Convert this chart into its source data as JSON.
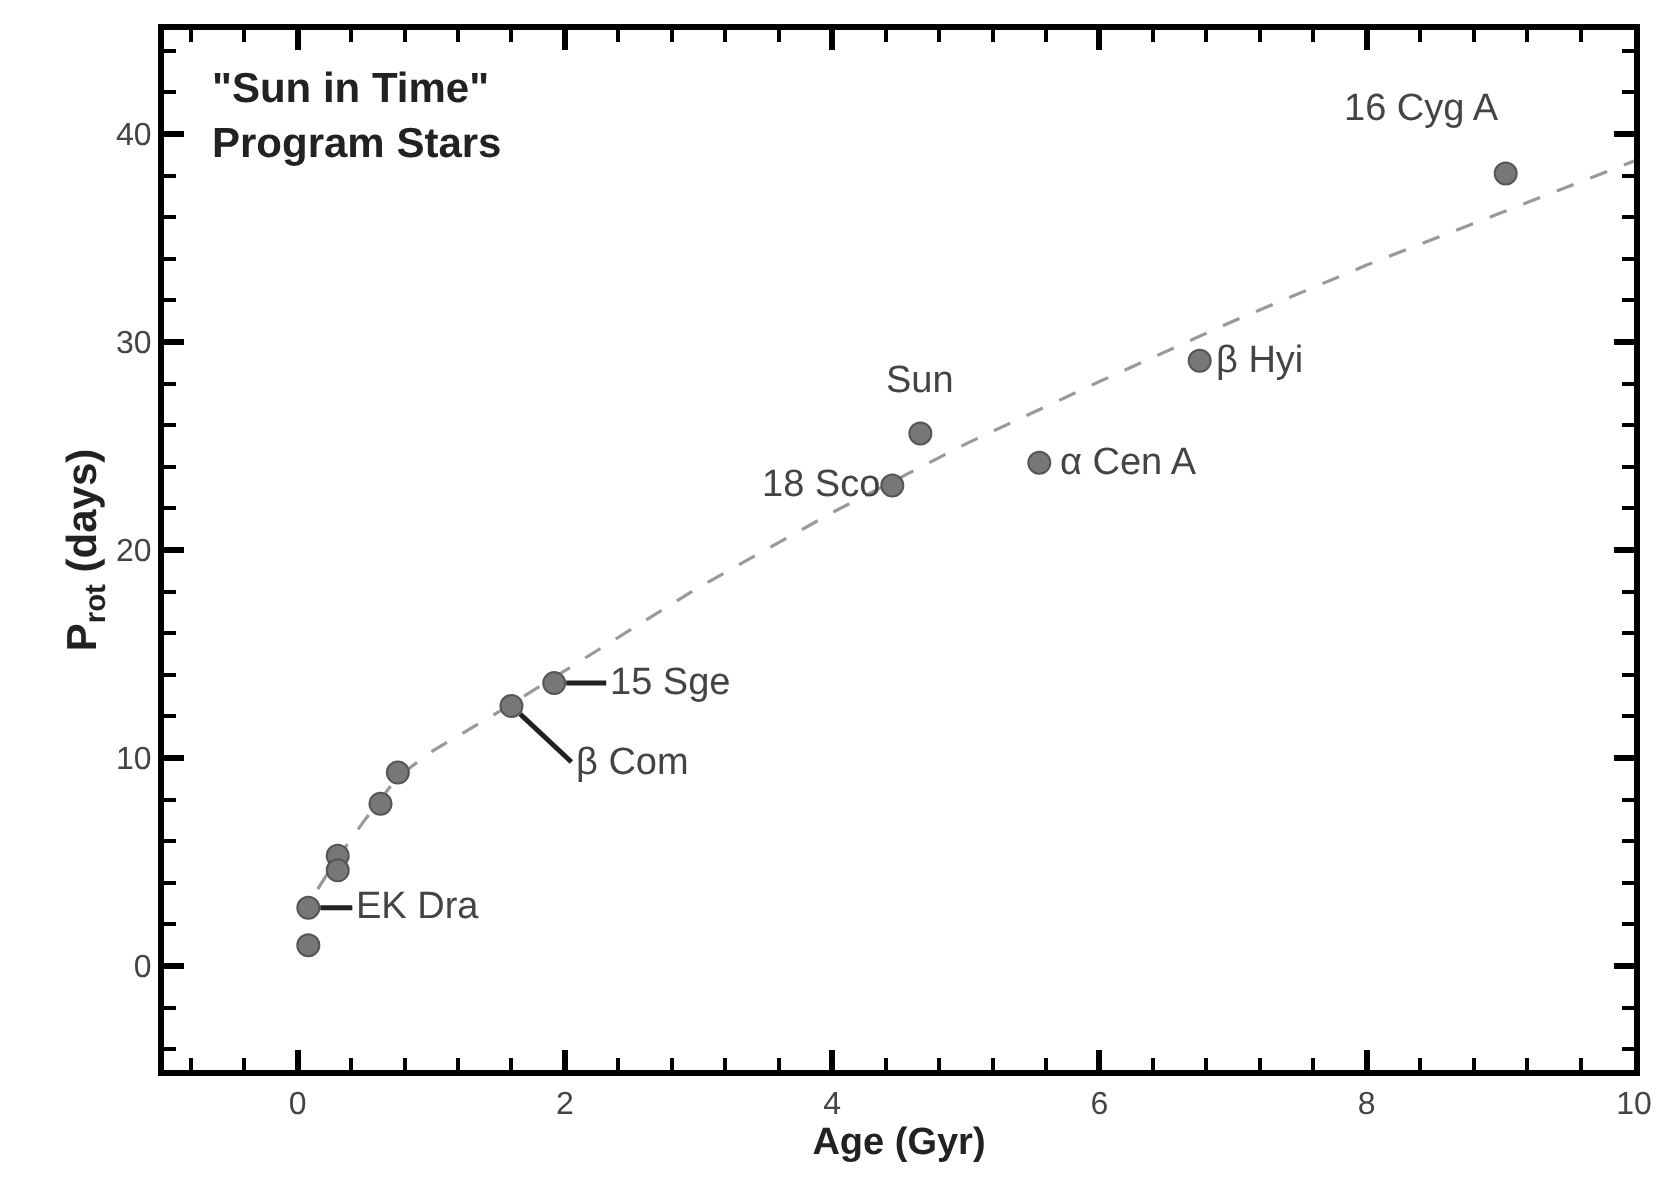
{
  "chart_data": {
    "type": "scatter",
    "title": "\"Sun in Time\"\nProgram Stars",
    "xlabel": "Age (Gyr)",
    "ylabel": "P$_{rot}$ (days)",
    "xlim": [
      -1,
      10
    ],
    "xticks": [
      0,
      2,
      4,
      6,
      8,
      10
    ],
    "ylim": [
      -5,
      45
    ],
    "yticks": [
      0,
      10,
      20,
      30,
      40
    ],
    "marker": "circle",
    "series": [
      {
        "type": "line",
        "color": "#999999",
        "line_style": "dashed",
        "marker": "none",
        "x": [
          0.15,
          0.3,
          0.5,
          0.75,
          1.0,
          1.5,
          2.0,
          3.0,
          4.0,
          5.0,
          6.0,
          7.0,
          8.0,
          9.0,
          10.0
        ],
        "values": [
          3.7,
          5.2,
          7.0,
          9.1,
          10.3,
          12.2,
          14.2,
          18.2,
          21.8,
          25.1,
          28.1,
          31.0,
          33.7,
          36.2,
          38.7
        ]
      },
      {
        "color": "#777777",
        "x": [
          0.08,
          0.08,
          0.3,
          0.3,
          0.62,
          0.75,
          1.6,
          1.92,
          4.45,
          4.66,
          5.55,
          6.75,
          9.04
        ],
        "values": [
          1.0,
          2.8,
          5.3,
          4.6,
          7.8,
          9.3,
          12.5,
          13.6,
          23.1,
          25.6,
          24.2,
          29.1,
          38.1
        ]
      }
    ],
    "annotations": [
      {
        "text": "EK Dra",
        "x": 0.08,
        "y": 2.8
      },
      {
        "text": "β Com",
        "x": 1.6,
        "y": 12.5
      },
      {
        "text": "15 Sge",
        "x": 1.92,
        "y": 13.6
      },
      {
        "text": "18 Sco",
        "x": 4.45,
        "y": 23.1
      },
      {
        "text": "Sun",
        "x": 4.66,
        "y": 25.6
      },
      {
        "text": "α Cen A",
        "x": 5.55,
        "y": 24.2
      },
      {
        "text": "β Hyi",
        "x": 6.75,
        "y": 29.1
      },
      {
        "text": "16 Cyg A",
        "x": 9.04,
        "y": 38.1
      }
    ]
  }
}
